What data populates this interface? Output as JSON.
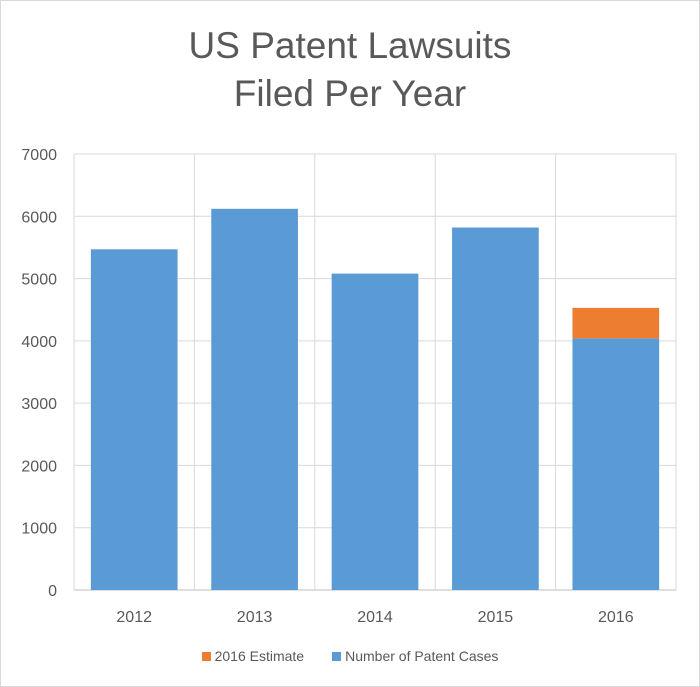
{
  "chart_data": {
    "type": "bar",
    "stacked": true,
    "title_lines": [
      "US Patent Lawsuits",
      "Filed Per Year"
    ],
    "xlabel": "",
    "ylabel": "",
    "categories": [
      "2012",
      "2013",
      "2014",
      "2015",
      "2016"
    ],
    "ylim": [
      0,
      7000
    ],
    "yticks": [
      0,
      1000,
      2000,
      3000,
      4000,
      5000,
      6000,
      7000
    ],
    "grid": true,
    "legend_position": "bottom",
    "series": [
      {
        "name": "Number of Patent Cases",
        "color": "#5b9bd5",
        "values": [
          5470,
          6120,
          5080,
          5820,
          4040
        ]
      },
      {
        "name": "2016 Estimate",
        "color": "#ed7d31",
        "values": [
          0,
          0,
          0,
          0,
          490
        ]
      }
    ],
    "legend_order": [
      1,
      0
    ]
  }
}
